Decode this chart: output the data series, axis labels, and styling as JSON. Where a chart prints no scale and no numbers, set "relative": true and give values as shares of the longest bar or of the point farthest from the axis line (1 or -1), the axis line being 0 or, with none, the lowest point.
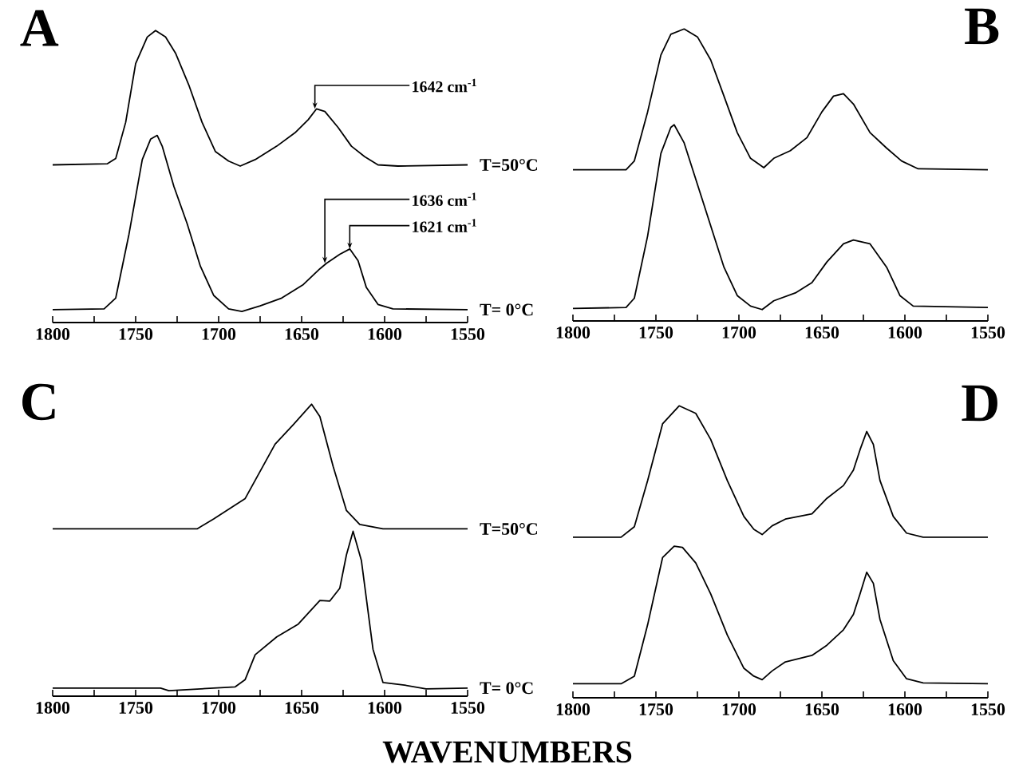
{
  "chart_data": [
    {
      "type": "line",
      "title": "A",
      "relative": true,
      "xlim": [
        1800,
        1550
      ],
      "xticks": [
        1800,
        {
          "value": 1775,
          "label": null
        },
        1750,
        {
          "value": 1725,
          "label": null
        },
        1700,
        {
          "value": 1675,
          "label": null
        },
        1650,
        {
          "value": 1625,
          "label": null
        },
        1600,
        {
          "value": 1575,
          "label": null
        },
        1550
      ],
      "series": [
        {
          "name": "T=50°C",
          "color": "#000000",
          "x": [
            1800,
            1767,
            1762,
            1756,
            1750,
            1743,
            1738,
            1732,
            1726,
            1718,
            1710,
            1702,
            1694,
            1687,
            1678,
            1665,
            1654,
            1646,
            1641,
            1636,
            1628,
            1620,
            1612,
            1604,
            1592,
            1550
          ],
          "values": [
            0.54,
            0.544,
            0.562,
            0.686,
            0.887,
            0.978,
            1.0,
            0.978,
            0.923,
            0.814,
            0.686,
            0.586,
            0.553,
            0.536,
            0.558,
            0.604,
            0.65,
            0.695,
            0.732,
            0.723,
            0.668,
            0.604,
            0.568,
            0.54,
            0.536,
            0.54
          ]
        },
        {
          "name": "T= 0°C",
          "color": "#000000",
          "x": [
            1800,
            1769,
            1762,
            1754,
            1746,
            1741,
            1737,
            1734,
            1727,
            1719,
            1711,
            1703,
            1694,
            1686,
            1675,
            1662,
            1649,
            1639,
            1635,
            1627,
            1621,
            1616,
            1611,
            1604,
            1595,
            1550
          ],
          "values": [
            0.044,
            0.047,
            0.084,
            0.303,
            0.558,
            0.628,
            0.641,
            0.604,
            0.467,
            0.339,
            0.193,
            0.093,
            0.047,
            0.038,
            0.057,
            0.084,
            0.13,
            0.184,
            0.203,
            0.234,
            0.252,
            0.212,
            0.12,
            0.062,
            0.047,
            0.044
          ]
        }
      ],
      "annotations": [
        {
          "text": "1642 cm$^{-1}$",
          "x": 1642,
          "y": 0.732
        },
        {
          "text": "1636 cm$^{-1}$",
          "x": 1636,
          "y": 0.203
        },
        {
          "text": "1621 cm$^{-1}$",
          "x": 1621,
          "y": 0.252
        }
      ]
    },
    {
      "type": "line",
      "title": "B",
      "relative": true,
      "xlim": [
        1800,
        1550
      ],
      "xticks": [
        1800,
        {
          "value": 1775,
          "label": null
        },
        1750,
        {
          "value": 1725,
          "label": null
        },
        1700,
        {
          "value": 1675,
          "label": null
        },
        1650,
        {
          "value": 1625,
          "label": null
        },
        1600,
        {
          "value": 1575,
          "label": null
        },
        1550
      ],
      "series": [
        {
          "color": "#000000",
          "x": [
            1800,
            1768,
            1763,
            1755,
            1747,
            1741,
            1733,
            1725,
            1717,
            1709,
            1701,
            1693,
            1685,
            1679,
            1669,
            1659,
            1650,
            1643,
            1637,
            1631,
            1621,
            1611,
            1602,
            1592,
            1550
          ],
          "values": [
            0.518,
            0.518,
            0.548,
            0.716,
            0.911,
            0.982,
            1.0,
            0.973,
            0.894,
            0.77,
            0.645,
            0.557,
            0.525,
            0.557,
            0.583,
            0.628,
            0.716,
            0.77,
            0.778,
            0.743,
            0.645,
            0.592,
            0.548,
            0.521,
            0.518
          ]
        },
        {
          "color": "#000000",
          "x": [
            1800,
            1768,
            1763,
            1755,
            1747,
            1741,
            1739,
            1733,
            1725,
            1717,
            1709,
            1701,
            1693,
            1686,
            1679,
            1666,
            1656,
            1647,
            1637,
            1631,
            1621,
            1611,
            1603,
            1595,
            1550
          ],
          "values": [
            0.043,
            0.046,
            0.078,
            0.291,
            0.574,
            0.663,
            0.672,
            0.61,
            0.468,
            0.326,
            0.184,
            0.087,
            0.051,
            0.039,
            0.069,
            0.096,
            0.131,
            0.202,
            0.264,
            0.277,
            0.264,
            0.184,
            0.087,
            0.051,
            0.046
          ]
        }
      ]
    },
    {
      "type": "line",
      "title": "C",
      "relative": true,
      "xlim": [
        1800,
        1550
      ],
      "xlabel": "WAVENUMBERS",
      "xticks": [
        1800,
        {
          "value": 1775,
          "label": null
        },
        1750,
        {
          "value": 1725,
          "label": null
        },
        1700,
        {
          "value": 1675,
          "label": null
        },
        1650,
        {
          "value": 1625,
          "label": null
        },
        1600,
        {
          "value": 1575,
          "label": null
        },
        1550
      ],
      "series": [
        {
          "name": "T=50°C",
          "color": "#000000",
          "x": [
            1800,
            1713,
            1703,
            1684,
            1666,
            1655,
            1644,
            1639,
            1631,
            1623,
            1615,
            1601,
            1550
          ],
          "values": [
            0.573,
            0.573,
            0.607,
            0.677,
            0.863,
            0.93,
            1.0,
            0.958,
            0.787,
            0.636,
            0.588,
            0.573,
            0.573
          ]
        },
        {
          "name": "T= 0°C",
          "color": "#000000",
          "x": [
            1800,
            1735,
            1730,
            1690,
            1684,
            1678,
            1665,
            1652,
            1639,
            1633,
            1627,
            1623,
            1619,
            1614,
            1607,
            1601,
            1588,
            1575,
            1550
          ],
          "values": [
            0.028,
            0.028,
            0.019,
            0.032,
            0.057,
            0.142,
            0.203,
            0.247,
            0.328,
            0.326,
            0.37,
            0.484,
            0.565,
            0.465,
            0.161,
            0.047,
            0.038,
            0.025,
            0.028
          ]
        }
      ]
    },
    {
      "type": "line",
      "title": "D",
      "relative": true,
      "xlim": [
        1800,
        1550
      ],
      "xticks": [
        1800,
        {
          "value": 1775,
          "label": null
        },
        1750,
        {
          "value": 1725,
          "label": null
        },
        1700,
        {
          "value": 1675,
          "label": null
        },
        1650,
        {
          "value": 1625,
          "label": null
        },
        1600,
        {
          "value": 1575,
          "label": null
        },
        1550
      ],
      "series": [
        {
          "color": "#000000",
          "x": [
            1800,
            1771,
            1763,
            1755,
            1746,
            1736,
            1726,
            1717,
            1707,
            1697,
            1691,
            1686,
            1680,
            1672,
            1656,
            1647,
            1637,
            1631,
            1627,
            1623,
            1619,
            1615,
            1607,
            1599,
            1589,
            1550
          ],
          "values": [
            0.55,
            0.55,
            0.586,
            0.744,
            0.938,
            1.0,
            0.974,
            0.885,
            0.744,
            0.621,
            0.577,
            0.559,
            0.589,
            0.612,
            0.63,
            0.683,
            0.727,
            0.78,
            0.85,
            0.912,
            0.868,
            0.744,
            0.621,
            0.564,
            0.55,
            0.55
          ]
        },
        {
          "color": "#000000",
          "x": [
            1800,
            1771,
            1763,
            1755,
            1746,
            1739,
            1734,
            1726,
            1717,
            1707,
            1697,
            1691,
            1686,
            1680,
            1672,
            1656,
            1647,
            1637,
            1631,
            1627,
            1623,
            1619,
            1615,
            1607,
            1599,
            1589,
            1550
          ],
          "values": [
            0.048,
            0.048,
            0.074,
            0.25,
            0.48,
            0.519,
            0.515,
            0.462,
            0.356,
            0.215,
            0.101,
            0.074,
            0.062,
            0.092,
            0.123,
            0.145,
            0.18,
            0.233,
            0.286,
            0.356,
            0.43,
            0.392,
            0.268,
            0.127,
            0.065,
            0.051,
            0.048
          ]
        }
      ]
    }
  ]
}
